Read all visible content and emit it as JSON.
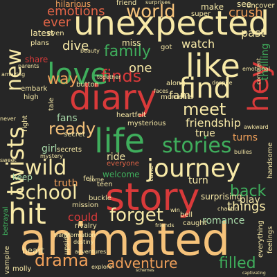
{
  "canvas": {
    "background": "#262626"
  },
  "words": {
    "unexpected": "unexpected",
    "diary": "diary",
    "animated": "animated",
    "story": "story",
    "love": "love",
    "like": "like",
    "find": "find",
    "life": "life",
    "journey": "journey",
    "hit": "hit",
    "wild": "wild",
    "school": "school",
    "stories": "stories",
    "forget": "forget",
    "world": "world",
    "family": "family",
    "new": "new",
    "twists": "twists",
    "hey": "hey",
    "ready": "ready",
    "meet": "meet",
    "finds": "finds",
    "drama": "drama",
    "adventure": "adventure",
    "filled": "filled",
    "back": "back",
    "way": "way",
    "emotions": "emotions",
    "dive": "dive",
    "crush": "crush",
    "things": "things",
    "friendship": "friendship",
    "ever": "ever",
    "one": "one",
    "fam": "fam",
    "watch": "watch",
    "past": "past",
    "turn": "turn",
    "could": "could",
    "fans": "fans",
    "truth": "truth",
    "girl": "girl",
    "play": "play",
    "romance": "romance",
    "latest": "latest",
    "plans": "plans",
    "share": "share",
    "thrilling": "thrilling",
    "turns": "turns",
    "true": "true",
    "ride": "ride",
    "mission": "mission",
    "keep": "keep",
    "heart": "heart",
    "surprising": "surprising",
    "welcome": "welcome",
    "everyone": "everyone",
    "secrets": "secrets",
    "button": "button",
    "moments": "moments",
    "mysterious": "mysterious",
    "heartfelt": "heartfelt",
    "hilarious": "hilarious",
    "friend": "friend",
    "make": "make",
    "see": "see",
    "uncover": "uncover",
    "super": "super",
    "miss": "miss",
    "got": "got",
    "beauty": "beauty",
    "tale": "tale",
    "secret": "secret",
    "along": "along",
    "faces": "faces",
    "caught": "caught",
    "bell": "bell",
    "win": "win",
    "buckle": "buckle",
    "rivalry": "rivalry",
    "teen": "teen",
    "come": "come",
    "friends": "friends",
    "explore": "explore",
    "molly": "molly",
    "vampire": "vampire",
    "betrayal": "betrayal",
    "everything": "everything",
    "feelings": "feelings",
    "handsome": "handsome",
    "comment": "comment",
    "parents": "parents",
    "amazing": "amazing",
    "embark": "embark",
    "high": "high",
    "right": "right",
    "never": "never",
    "even": "even",
    "despite": "despite",
    "emotional": "emotional",
    "together": "together",
    "awkward": "awkward",
    "bullies": "bullies",
    "chaotic": "chaotic",
    "destiny": "destiny",
    "adventures": "adventures",
    "transformation": "transformation",
    "upside": "upside",
    "schemes": "schemes",
    "captivating": "captivating",
    "sweet": "sweet",
    "mystery": "mystery",
    "tune": "tune",
    "surprises": "surprises",
    "fell": "fell"
  }
}
